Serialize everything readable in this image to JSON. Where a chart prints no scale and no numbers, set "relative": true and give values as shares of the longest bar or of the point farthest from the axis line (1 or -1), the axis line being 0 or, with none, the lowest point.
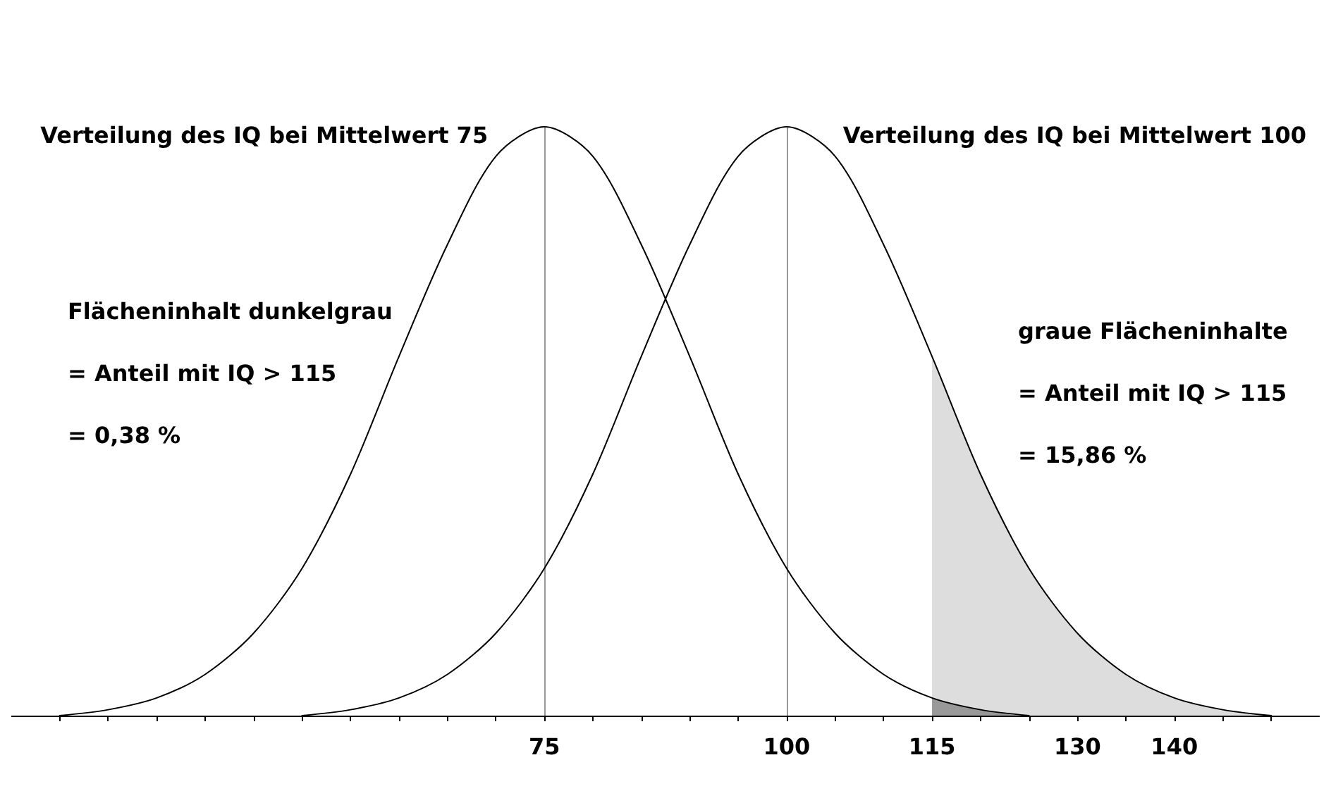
{
  "chart_data": {
    "type": "line",
    "relative": true,
    "series": [
      {
        "color": "#000000",
        "x": [
          25,
          30,
          35,
          40,
          45,
          50,
          55,
          60,
          65,
          70,
          75,
          80,
          85,
          90,
          95,
          100,
          105,
          110,
          115,
          120,
          125
        ],
        "values": [
          0,
          0.01,
          0.03,
          0.07,
          0.14,
          0.25,
          0.41,
          0.61,
          0.8,
          0.95,
          1,
          0.95,
          0.8,
          0.61,
          0.41,
          0.25,
          0.14,
          0.07,
          0.03,
          0.01,
          0
        ]
      },
      {
        "color": "#000000",
        "x": [
          50,
          55,
          60,
          65,
          70,
          75,
          80,
          85,
          90,
          95,
          100,
          105,
          110,
          115,
          120,
          125,
          130,
          135,
          140,
          145,
          150
        ],
        "values": [
          0,
          0.01,
          0.03,
          0.07,
          0.14,
          0.25,
          0.41,
          0.61,
          0.8,
          0.95,
          1,
          0.95,
          0.8,
          0.61,
          0.41,
          0.25,
          0.14,
          0.07,
          0.03,
          0.01,
          0
        ]
      },
      {
        "type": "area",
        "color": "#dddddd",
        "x": [
          115,
          120,
          125,
          130,
          135,
          140,
          145,
          150,
          155
        ],
        "values": [
          0.61,
          0.41,
          0.25,
          0.14,
          0.07,
          0.03,
          0.01,
          0,
          0
        ]
      },
      {
        "type": "area",
        "color": "#999999",
        "x": [
          115,
          120,
          125,
          130
        ],
        "values": [
          0.03,
          0.01,
          0,
          0
        ]
      }
    ],
    "xlim": [
      20,
      155
    ],
    "xticks": [
      {
        "value": 25,
        "label": null
      },
      {
        "value": 30,
        "label": null
      },
      {
        "value": 35,
        "label": null
      },
      {
        "value": 40,
        "label": null
      },
      {
        "value": 45,
        "label": null
      },
      {
        "value": 50,
        "label": null
      },
      {
        "value": 55,
        "label": null
      },
      {
        "value": 60,
        "label": null
      },
      {
        "value": 65,
        "label": null
      },
      {
        "value": 70,
        "label": null
      },
      75,
      {
        "value": 80,
        "label": null
      },
      {
        "value": 85,
        "label": null
      },
      {
        "value": 90,
        "label": null
      },
      {
        "value": 95,
        "label": null
      },
      100,
      {
        "value": 105,
        "label": null
      },
      {
        "value": 110,
        "label": null
      },
      115,
      {
        "value": 120,
        "label": null
      },
      {
        "value": 125,
        "label": null
      },
      130,
      {
        "value": 135,
        "label": null
      },
      140,
      {
        "value": 145,
        "label": null
      },
      {
        "value": 150,
        "label": null
      }
    ],
    "ref_lines": [
      {
        "axis": "x",
        "value": 75,
        "color": "#999999"
      },
      {
        "axis": "x",
        "value": 100,
        "color": "#999999"
      }
    ],
    "annotations": [
      {
        "text": "Verteilung des IQ bei Mittelwert 75",
        "x": 75,
        "y": 1
      },
      {
        "text": "Verteilung des IQ bei Mittelwert 100",
        "x": 100,
        "y": 1
      },
      "Flächeninhalt dunkelgrau\n\n= Anteil mit IQ > 115\n\n= 0,38 %",
      "graue Flächeninhalte\n\n= Anteil mit IQ > 115\n\n= 15,86 %"
    ],
    "grid": false,
    "marker": "none",
    "line_style": "solid"
  }
}
